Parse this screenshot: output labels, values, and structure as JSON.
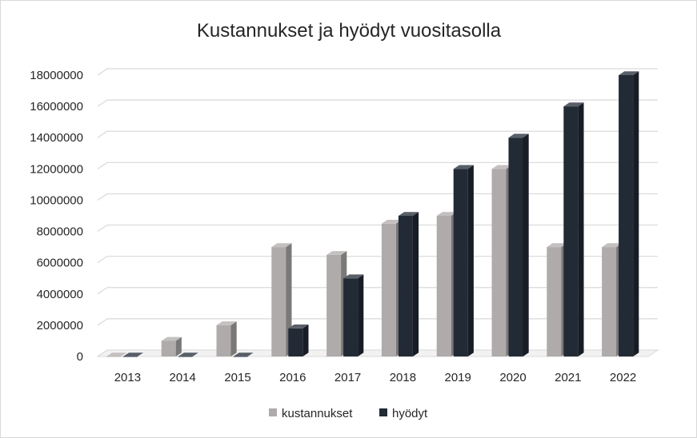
{
  "chart_data": {
    "type": "bar",
    "title": "Kustannukset ja hyödyt vuositasolla",
    "xlabel": "",
    "ylabel": "",
    "categories": [
      "2013",
      "2014",
      "2015",
      "2016",
      "2017",
      "2018",
      "2019",
      "2020",
      "2021",
      "2022"
    ],
    "series": [
      {
        "name": "kustannukset",
        "color": "#b0abab",
        "values": [
          0,
          1000000,
          2000000,
          7000000,
          6500000,
          8500000,
          9000000,
          12000000,
          7000000,
          7000000
        ]
      },
      {
        "name": "hyödyt",
        "color": "#222a35",
        "values": [
          0,
          0,
          0,
          1800000,
          5000000,
          9000000,
          12000000,
          14000000,
          16000000,
          18000000
        ]
      }
    ],
    "yticks": [
      "0",
      "2000000",
      "4000000",
      "6000000",
      "8000000",
      "10000000",
      "12000000",
      "14000000",
      "16000000",
      "18000000"
    ],
    "ylim": [
      0,
      18000000
    ],
    "grid": true,
    "legend_position": "bottom"
  }
}
